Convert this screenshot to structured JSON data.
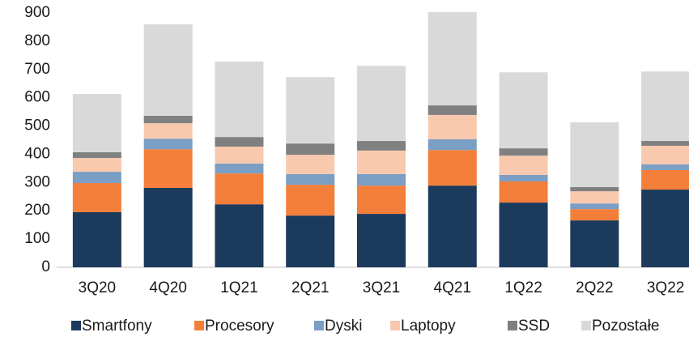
{
  "chart_data": {
    "type": "stacked_bar",
    "categories": [
      "3Q20",
      "4Q20",
      "1Q21",
      "2Q21",
      "3Q21",
      "4Q21",
      "1Q22",
      "2Q22",
      "3Q22"
    ],
    "series": [
      {
        "name": "Smartfony",
        "color": "#1b3a5c",
        "values": [
          195,
          281,
          223,
          183,
          189,
          289,
          229,
          166,
          275
        ]
      },
      {
        "name": "Procesory",
        "color": "#f47f3a",
        "values": [
          103,
          137,
          109,
          109,
          100,
          126,
          75,
          40,
          69
        ]
      },
      {
        "name": "Dyski",
        "color": "#7a9ec4",
        "values": [
          40,
          37,
          35,
          38,
          41,
          38,
          23,
          20,
          20
        ]
      },
      {
        "name": "Laptopy",
        "color": "#f9c9ae",
        "values": [
          49,
          55,
          60,
          68,
          83,
          86,
          68,
          43,
          66
        ]
      },
      {
        "name": "SSD",
        "color": "#808080",
        "values": [
          20,
          26,
          34,
          40,
          34,
          34,
          26,
          15,
          17
        ]
      },
      {
        "name": "Pozostałe",
        "color": "#d9d9d9",
        "values": [
          206,
          324,
          267,
          235,
          266,
          330,
          269,
          229,
          246
        ]
      }
    ],
    "ylim": [
      0,
      900
    ],
    "yticks": [
      0,
      100,
      200,
      300,
      400,
      500,
      600,
      700,
      800,
      900
    ],
    "legend": "bottom"
  }
}
